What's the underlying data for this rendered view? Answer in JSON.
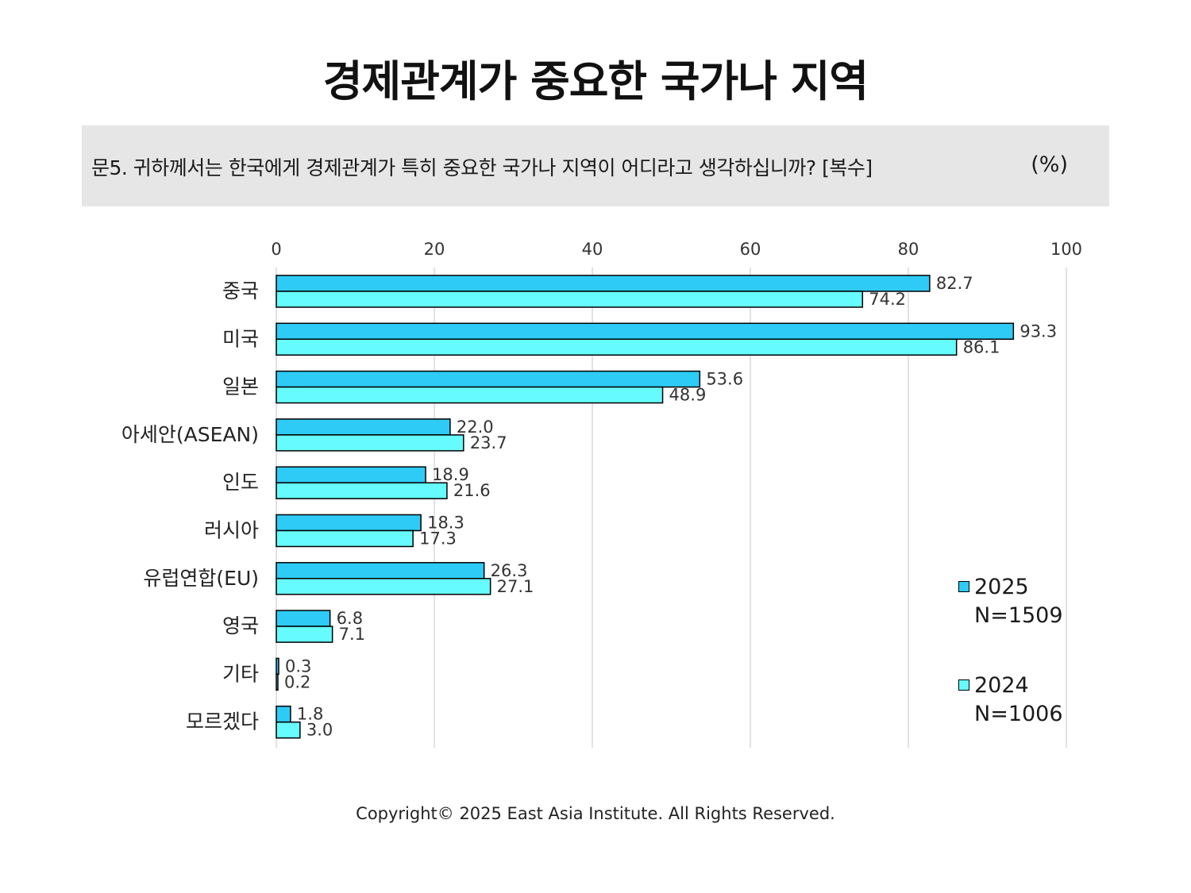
{
  "title": "경제관계가 중요한 국가나 지역",
  "question": "문5. 귀하께서는 한국에게 경제관계가 특히 중요한 국가나 지역이 어디라고 생각하십니까? [복수]",
  "unit": "(%)",
  "copyright": "Copyright© 2025 East Asia Institute. All Rights Reserved.",
  "colors": {
    "series_2025": "#2ecbf7",
    "series_2024": "#66fbff",
    "grid": "#d9d9d9",
    "question_bg": "#e7e6e7"
  },
  "legend": [
    {
      "year": "2025",
      "n": "N=1509"
    },
    {
      "year": "2024",
      "n": "N=1006"
    }
  ],
  "chart_data": {
    "type": "bar",
    "orientation": "horizontal",
    "categories": [
      "중국",
      "미국",
      "일본",
      "아세안(ASEAN)",
      "인도",
      "러시아",
      "유럽연합(EU)",
      "영국",
      "기타",
      "모르겠다"
    ],
    "series": [
      {
        "name": "2025",
        "values": [
          82.7,
          93.3,
          53.6,
          22.0,
          18.9,
          18.3,
          26.3,
          6.8,
          0.3,
          1.8
        ],
        "labels": [
          "82.7",
          "93.3",
          "53.6",
          "22.0",
          "18.9",
          "18.3",
          "26.3",
          "6.8",
          "0.3",
          "1.8"
        ]
      },
      {
        "name": "2024",
        "values": [
          74.2,
          86.1,
          48.9,
          23.7,
          21.6,
          17.3,
          27.1,
          7.1,
          0.2,
          3.0
        ],
        "labels": [
          "74.2",
          "86.1",
          "48.9",
          "23.7",
          "21.6",
          "17.3",
          "27.1",
          "7.1",
          "0.2",
          "3.0"
        ]
      }
    ],
    "xlim": [
      0,
      100
    ],
    "ticks": [
      "0",
      "20",
      "40",
      "60",
      "80",
      "100"
    ],
    "tick_values": [
      0,
      20,
      40,
      60,
      80,
      100
    ],
    "grid": true,
    "legend_position": "right"
  }
}
